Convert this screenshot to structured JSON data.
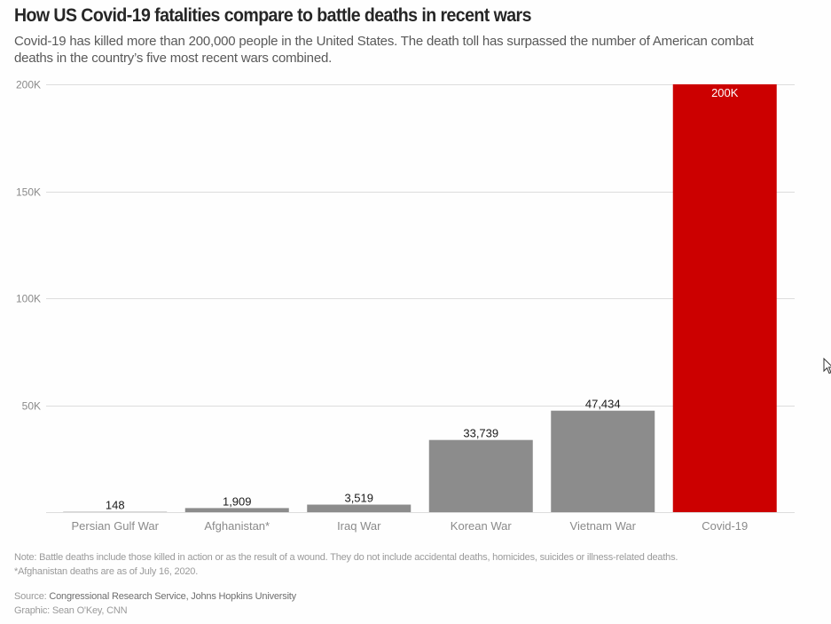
{
  "header": {
    "title": "How US Covid-19 fatalities compare to battle deaths in recent wars",
    "subtitle": "Covid-19 has killed more than 200,000 people in the United States. The death toll has surpassed the number of American combat deaths in the country’s five most recent wars combined."
  },
  "chart_data": {
    "type": "bar",
    "title": "How US Covid-19 fatalities compare to battle deaths in recent wars",
    "xlabel": "",
    "ylabel": "",
    "categories": [
      "Persian Gulf War",
      "Afghanistan*",
      "Iraq War",
      "Korean War",
      "Vietnam War",
      "Covid-19"
    ],
    "values": [
      148,
      1909,
      3519,
      33739,
      47434,
      200000
    ],
    "value_labels": [
      "148",
      "1,909",
      "3,519",
      "33,739",
      "47,434",
      "200K"
    ],
    "colors": [
      "#8c8c8c",
      "#8c8c8c",
      "#8c8c8c",
      "#8c8c8c",
      "#8c8c8c",
      "#cc0000"
    ],
    "ylim": [
      0,
      200000
    ],
    "yticks": [
      50000,
      100000,
      150000,
      200000
    ],
    "ytick_labels": [
      "50K",
      "100K",
      "150K",
      "200K"
    ],
    "grid": true,
    "legend": "none"
  },
  "footer": {
    "note": "Note: Battle deaths include those killed in action or as the result of a wound. They do not include accidental deaths, homicides, suicides or illness-related deaths.",
    "footnote": "*Afghanistan deaths are as of July 16, 2020.",
    "source_label": "Source: ",
    "source": "Congressional Research Service, Johns Hopkins University",
    "graphic_credit": "Graphic: Sean O'Key, CNN"
  },
  "cursor": {
    "icon": "mouse-pointer-icon"
  }
}
